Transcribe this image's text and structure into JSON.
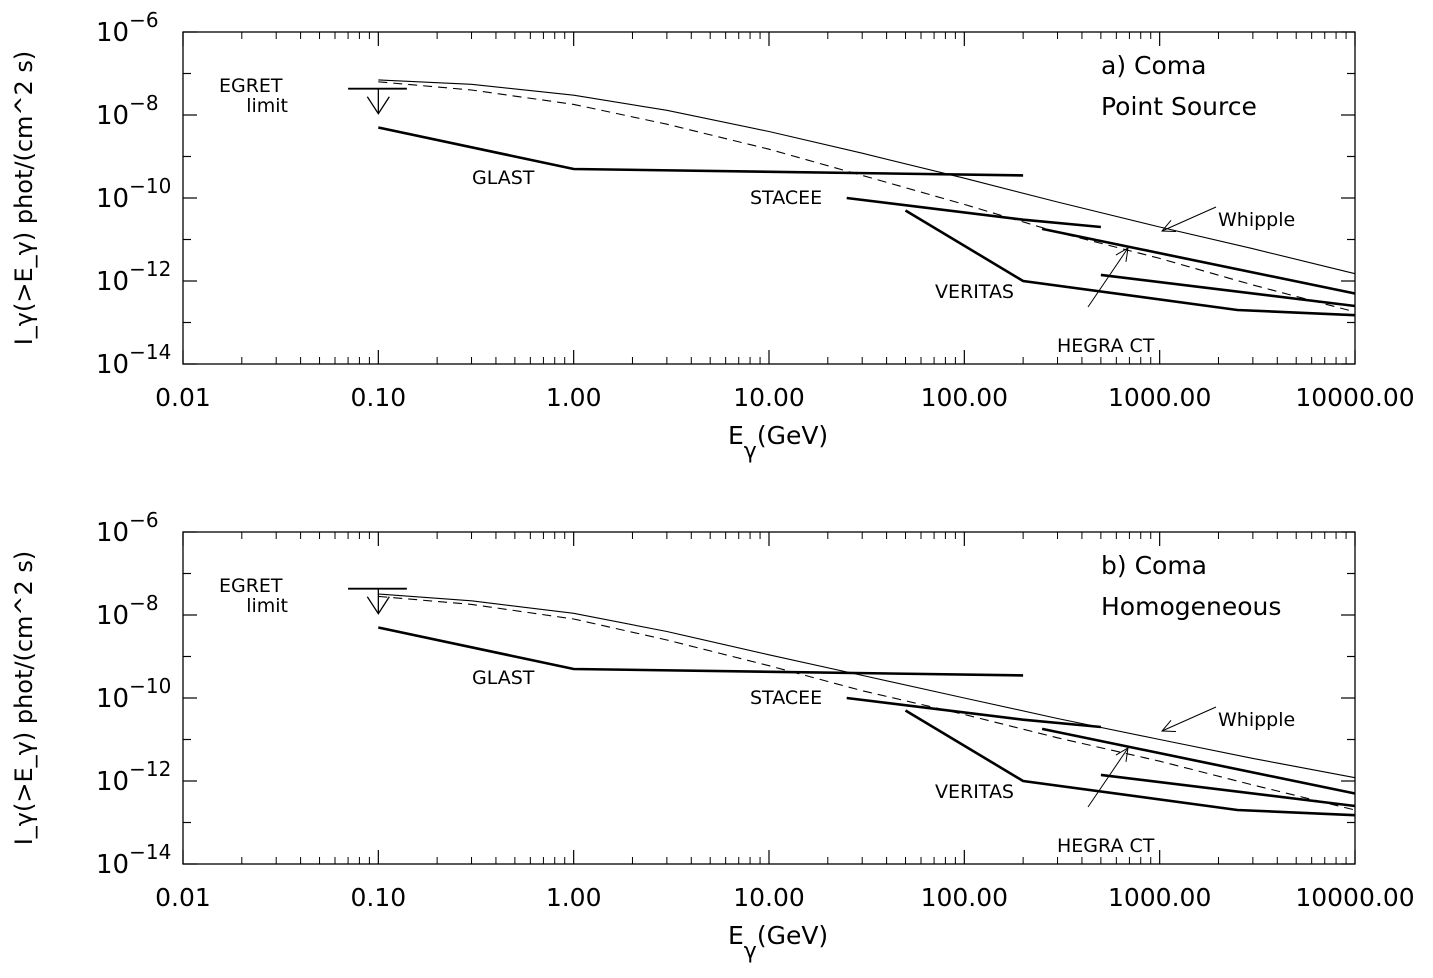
{
  "chart_data": [
    {
      "type": "line",
      "panel_label": "a) Coma",
      "panel_sublabel": "Point Source",
      "xlabel": {
        "main": "E",
        "sub": "γ",
        "tail": "(GeV)"
      },
      "ylabel": "I_γ(>E_γ) phot/(cm^2 s)",
      "xscale": "log",
      "yscale": "log",
      "xlim": [
        0.01,
        10000
      ],
      "ylim": [
        1e-14,
        1e-06
      ],
      "xticks": [
        "0.01",
        "0.10",
        "1.00",
        "10.00",
        "100.00",
        "1000.00",
        "10000.00"
      ],
      "yticks": [
        {
          "base": "10",
          "exp": "−6"
        },
        {
          "base": "10",
          "exp": "−8"
        },
        {
          "base": "10",
          "exp": "−10"
        },
        {
          "base": "10",
          "exp": "−12"
        },
        {
          "base": "10",
          "exp": "−14"
        }
      ],
      "egret": {
        "label1": "EGRET",
        "label2": "limit",
        "x": [
          0.07,
          0.14
        ],
        "y": 4.3e-08
      },
      "models": [
        {
          "style": "solid-thin",
          "x": [
            0.1,
            0.3,
            1,
            3,
            10,
            30,
            100,
            300,
            1000,
            3000,
            10000
          ],
          "y": [
            7e-08,
            5.5e-08,
            3e-08,
            1.3e-08,
            4e-09,
            1.2e-09,
            3e-10,
            8e-11,
            2e-11,
            6e-12,
            1.5e-12
          ]
        },
        {
          "style": "dashed",
          "x": [
            0.1,
            0.3,
            1,
            3,
            10,
            30,
            100,
            300,
            1000,
            3000,
            10000
          ],
          "y": [
            6.3e-08,
            4e-08,
            1.8e-08,
            6e-09,
            1.5e-09,
            3.5e-10,
            7e-11,
            1.5e-11,
            3.5e-12,
            8e-13,
            1.8e-13
          ]
        }
      ],
      "instruments": [
        {
          "name": "GLAST",
          "x": [
            0.1,
            1,
            200
          ],
          "y": [
            5e-09,
            5e-10,
            3.5e-10
          ]
        },
        {
          "name": "STACEE",
          "x": [
            25,
            200,
            500
          ],
          "y": [
            1e-10,
            3e-11,
            2e-11
          ]
        },
        {
          "name": "VERITAS",
          "x": [
            50,
            200,
            2500,
            10000
          ],
          "y": [
            5e-11,
            1e-12,
            2e-13,
            1.5e-13
          ]
        },
        {
          "name": "Whipple",
          "x": [
            250,
            10000
          ],
          "y": [
            1.8e-11,
            5e-13
          ]
        },
        {
          "name": "HEGRA CT",
          "x": [
            500,
            10000
          ],
          "y": [
            1.4e-12,
            2.5e-13
          ]
        }
      ]
    },
    {
      "type": "line",
      "panel_label": "b) Coma",
      "panel_sublabel": "Homogeneous",
      "xlabel": {
        "main": "E",
        "sub": "γ",
        "tail": "(GeV)"
      },
      "ylabel": "I_γ(>E_γ) phot/(cm^2 s)",
      "xscale": "log",
      "yscale": "log",
      "xlim": [
        0.01,
        10000
      ],
      "ylim": [
        1e-14,
        1e-06
      ],
      "xticks": [
        "0.01",
        "0.10",
        "1.00",
        "10.00",
        "100.00",
        "1000.00",
        "10000.00"
      ],
      "yticks": [
        {
          "base": "10",
          "exp": "−6"
        },
        {
          "base": "10",
          "exp": "−8"
        },
        {
          "base": "10",
          "exp": "−10"
        },
        {
          "base": "10",
          "exp": "−12"
        },
        {
          "base": "10",
          "exp": "−14"
        }
      ],
      "egret": {
        "label1": "EGRET",
        "label2": "limit",
        "x": [
          0.07,
          0.14
        ],
        "y": 4.3e-08
      },
      "models": [
        {
          "style": "solid-thin",
          "x": [
            0.1,
            0.3,
            1,
            3,
            10,
            30,
            100,
            300,
            1000,
            3000,
            10000
          ],
          "y": [
            3.2e-08,
            2.2e-08,
            1.1e-08,
            4e-09,
            1.1e-09,
            3.5e-10,
            1e-10,
            3.2e-11,
            1e-11,
            3.5e-12,
            1.2e-12
          ]
        },
        {
          "style": "dashed",
          "x": [
            0.1,
            0.3,
            1,
            3,
            10,
            30,
            100,
            300,
            1000,
            3000,
            10000
          ],
          "y": [
            2.8e-08,
            1.8e-08,
            8e-09,
            2.5e-09,
            6e-10,
            1.5e-10,
            4e-11,
            1.1e-11,
            3e-12,
            8e-13,
            2e-13
          ]
        }
      ],
      "instruments": [
        {
          "name": "GLAST",
          "x": [
            0.1,
            1,
            200
          ],
          "y": [
            5e-09,
            5e-10,
            3.5e-10
          ]
        },
        {
          "name": "STACEE",
          "x": [
            25,
            200,
            500
          ],
          "y": [
            1e-10,
            3e-11,
            2e-11
          ]
        },
        {
          "name": "VERITAS",
          "x": [
            50,
            200,
            2500,
            10000
          ],
          "y": [
            5e-11,
            1e-12,
            2e-13,
            1.5e-13
          ]
        },
        {
          "name": "Whipple",
          "x": [
            250,
            10000
          ],
          "y": [
            1.8e-11,
            5e-13
          ]
        },
        {
          "name": "HEGRA CT",
          "x": [
            500,
            10000
          ],
          "y": [
            1.4e-12,
            2.5e-13
          ]
        }
      ]
    }
  ]
}
